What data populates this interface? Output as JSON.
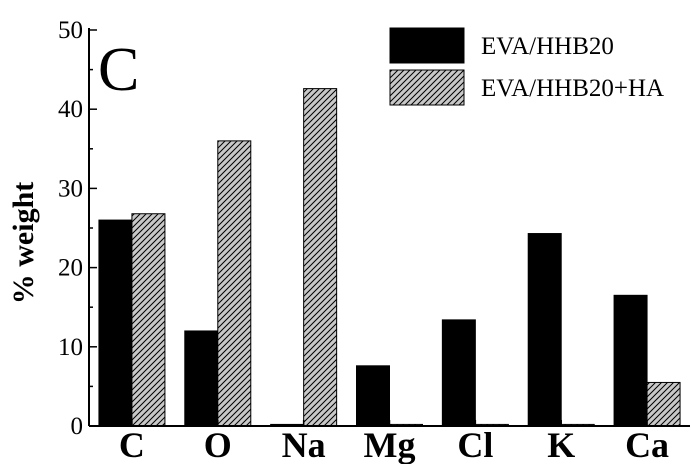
{
  "chart_data": {
    "type": "bar",
    "panel_label": "C",
    "title": "",
    "xlabel": "",
    "ylabel": "% weight",
    "ylim": [
      0,
      50
    ],
    "yticks": [
      0,
      10,
      20,
      30,
      40,
      50
    ],
    "grid": false,
    "legend_position": "top-right",
    "categories": [
      "C",
      "O",
      "Na",
      "Mg",
      "Cl",
      "K",
      "Ca"
    ],
    "series": [
      {
        "name": "EVA/HHB20",
        "fill": "solid",
        "color": "#000000",
        "values": [
          26.0,
          12.0,
          0.2,
          7.6,
          13.4,
          24.3,
          16.5
        ]
      },
      {
        "name": "EVA/HHB20+HA",
        "fill": "hatched",
        "color": "#c8c8c8",
        "values": [
          26.8,
          36.0,
          42.6,
          0.2,
          0.2,
          0.2,
          5.5
        ]
      }
    ]
  }
}
